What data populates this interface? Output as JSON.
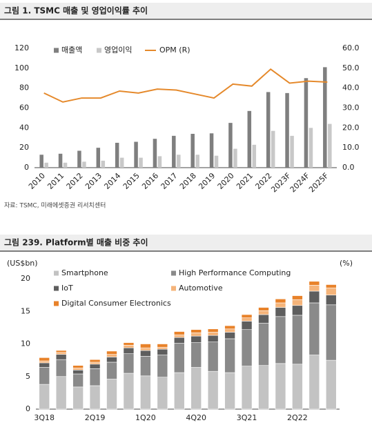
{
  "chart_data": [
    {
      "type": "bar",
      "title": "그림 1. TSMC 매출 및 영업이익률 추이",
      "categories": [
        "2010",
        "2011",
        "2012",
        "2013",
        "2014",
        "2015",
        "2016",
        "2017",
        "2018",
        "2019",
        "2020",
        "2021",
        "2022",
        "2023F",
        "2024F",
        "2025F"
      ],
      "series": [
        {
          "name": "매출액",
          "color": "#7f7f7f",
          "values": [
            13,
            14,
            17,
            20,
            25,
            26,
            29,
            32,
            34,
            34.5,
            45,
            57,
            76,
            75,
            90,
            101
          ]
        },
        {
          "name": "영업이익",
          "color": "#c8c8c8",
          "values": [
            5,
            5,
            6,
            7,
            10,
            10,
            11.5,
            13,
            13,
            12,
            19,
            23,
            37,
            32,
            40,
            44
          ]
        },
        {
          "name": "OPM (R)",
          "color": "#e5892b",
          "type": "line",
          "axis": "y2",
          "values": [
            37.5,
            33,
            35,
            35,
            38.5,
            37.5,
            39.5,
            39,
            37,
            35,
            42,
            41,
            49.5,
            42.5,
            43.5,
            43
          ]
        }
      ],
      "ylim": [
        0,
        120
      ],
      "yticks": [
        0,
        20,
        40,
        60,
        80,
        100,
        120
      ],
      "y2lim": [
        0,
        60
      ],
      "y2ticks": [
        {
          "value": 0,
          "label": "0.0"
        },
        {
          "value": 10,
          "label": "10.0"
        },
        {
          "value": 20,
          "label": "20.0"
        },
        {
          "value": 30,
          "label": "30.0"
        },
        {
          "value": 40,
          "label": "40.0"
        },
        {
          "value": 50,
          "label": "50.0"
        },
        {
          "value": 60,
          "label": "60.0"
        }
      ],
      "grid": false
    },
    {
      "type": "stacked_bar",
      "title": "그림 239. Platform별 매출 비중 추이",
      "ylabel": "(US$bn)",
      "y2label": "(%)",
      "categories": [
        "3Q18",
        null,
        null,
        "2Q19",
        null,
        null,
        "1Q20",
        null,
        null,
        "4Q20",
        null,
        null,
        "3Q21",
        null,
        null,
        "2Q22",
        null,
        null
      ],
      "series": [
        {
          "name": "Smartphone",
          "color": "#c3c3c3",
          "values": [
            3.8,
            5.0,
            3.4,
            3.6,
            4.6,
            5.5,
            5.1,
            4.9,
            5.6,
            6.4,
            5.8,
            5.6,
            6.6,
            6.7,
            7.0,
            6.9,
            8.3,
            7.5
          ]
        },
        {
          "name": "High Performance Computing",
          "color": "#8a8a8a",
          "values": [
            2.6,
            2.6,
            2.0,
            2.6,
            2.6,
            3.0,
            3.0,
            3.4,
            4.5,
            3.8,
            4.5,
            5.2,
            5.6,
            6.5,
            7.2,
            7.5,
            8.0,
            8.5
          ]
        },
        {
          "name": "IoT",
          "color": "#5e5e5e",
          "values": [
            0.7,
            0.8,
            0.6,
            0.7,
            0.8,
            0.9,
            0.9,
            0.9,
            0.9,
            1.0,
            1.0,
            1.0,
            1.3,
            1.3,
            1.4,
            1.5,
            1.8,
            1.5
          ]
        },
        {
          "name": "Automotive",
          "color": "#f5b47a",
          "values": [
            0.3,
            0.3,
            0.3,
            0.3,
            0.4,
            0.4,
            0.4,
            0.3,
            0.4,
            0.5,
            0.5,
            0.5,
            0.5,
            0.6,
            0.7,
            0.9,
            0.9,
            1.1
          ]
        },
        {
          "name": "Digital Consumer Electronics",
          "color": "#e8822a",
          "values": [
            0.5,
            0.3,
            0.4,
            0.4,
            0.5,
            0.4,
            0.6,
            0.5,
            0.5,
            0.5,
            0.5,
            0.5,
            0.5,
            0.5,
            0.6,
            0.6,
            0.6,
            0.5
          ]
        }
      ],
      "ylim": [
        0,
        20
      ],
      "yticks": [
        0,
        5,
        10,
        15,
        20
      ],
      "grid": false
    }
  ],
  "source": "자료: TSMC, 미래에셋증권 리서치센터"
}
